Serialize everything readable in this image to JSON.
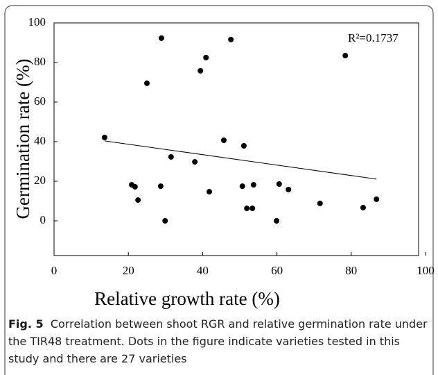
{
  "chart_data": {
    "type": "scatter",
    "xlabel": "Relative growth rate (%)",
    "ylabel": "Germination rate (%)",
    "annotation": "R²=0.1737",
    "xlim": [
      0,
      100
    ],
    "xticks": [
      0,
      20,
      40,
      60,
      80,
      100
    ],
    "ylim": [
      -20,
      100
    ],
    "yticks": [
      0,
      20,
      40,
      60,
      80,
      100
    ],
    "color": "#000000",
    "x": [
      13.6,
      25.0,
      28.9,
      40.9,
      39.4,
      47.6,
      78.4,
      45.7,
      51.1,
      31.5,
      37.9,
      20.9,
      21.8,
      28.7,
      22.6,
      29.9,
      41.8,
      50.7,
      53.7,
      60.6,
      63.1,
      51.9,
      53.4,
      59.9,
      71.6,
      83.2,
      86.8
    ],
    "values": [
      42.1,
      69.5,
      92.3,
      82.5,
      75.8,
      91.6,
      83.5,
      40.7,
      37.9,
      32.3,
      29.8,
      18.2,
      17.2,
      17.5,
      10.5,
      0,
      14.7,
      17.5,
      18.2,
      18.6,
      15.8,
      6.3,
      6.3,
      0,
      8.8,
      6.7,
      10.9
    ],
    "trendline": {
      "x": [
        13.6,
        86.8
      ],
      "y": [
        40.4,
        21.1
      ]
    }
  },
  "caption": {
    "label": "Fig. 5",
    "text": "Correlation between shoot RGR and relative germination rate under the TIR48 treatment. Dots in the figure indicate varieties tested in this study and there are 27 varieties"
  }
}
